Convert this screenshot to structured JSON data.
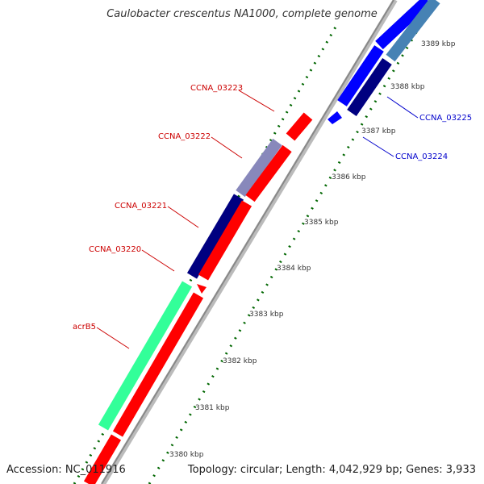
{
  "title": "Caulobacter crescentus NA1000, complete genome",
  "footer": {
    "accession": "Accession: NC_011916",
    "topology": "Topology: circular; Length: 4,042,929 bp; Genes: 3,933"
  },
  "colors": {
    "forward_gene": "#ff0000",
    "reverse_gene_dark": "#000080",
    "reverse_gene_light": "#8888cc",
    "acrB5": "#33ff99",
    "blue_gene": "#0000ff",
    "steelblue_gene": "#4682b4",
    "tick": "#006600",
    "backbone": "#999999"
  },
  "kbp_ticks": [
    {
      "label": "3380 kbp"
    },
    {
      "label": "3381 kbp"
    },
    {
      "label": "3382 kbp"
    },
    {
      "label": "3383 kbp"
    },
    {
      "label": "3384 kbp"
    },
    {
      "label": "3385 kbp"
    },
    {
      "label": "3386 kbp"
    },
    {
      "label": "3387 kbp"
    },
    {
      "label": "3388 kbp"
    },
    {
      "label": "3389 kbp"
    }
  ],
  "gene_labels": [
    {
      "text": "CCNA_03223",
      "color": "#cc0000"
    },
    {
      "text": "CCNA_03222",
      "color": "#cc0000"
    },
    {
      "text": "CCNA_03221",
      "color": "#cc0000"
    },
    {
      "text": "CCNA_03220",
      "color": "#cc0000"
    },
    {
      "text": "acrB5",
      "color": "#cc0000"
    },
    {
      "text": "CCNA_03225",
      "color": "#0000cc"
    },
    {
      "text": "CCNA_03224",
      "color": "#0000cc"
    }
  ]
}
